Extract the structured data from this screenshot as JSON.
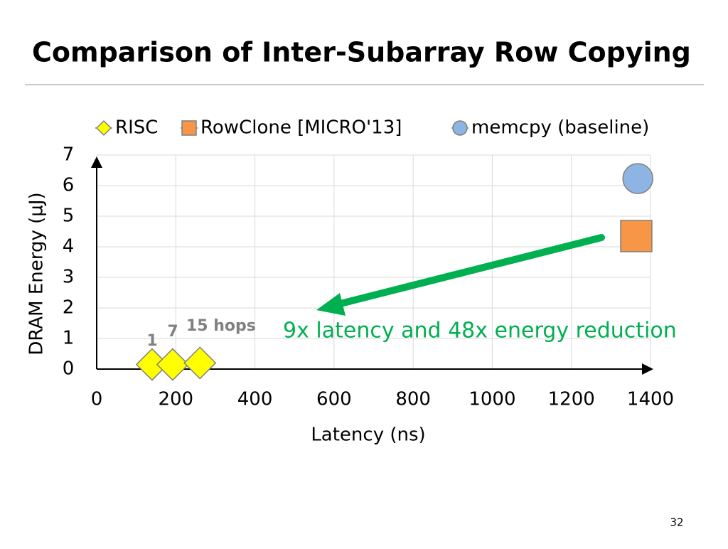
{
  "title": "Comparison of Inter-Subarray Row Copying",
  "page_number": "32",
  "chart_data": {
    "type": "scatter",
    "x_label": "Latency (ns)",
    "y_label": "DRAM Energy (µJ)",
    "xlim": [
      0,
      1400
    ],
    "xticks": [
      0,
      200,
      400,
      600,
      800,
      1000,
      1200,
      1400
    ],
    "ylim": [
      0,
      7
    ],
    "yticks": [
      0,
      1,
      2,
      3,
      4,
      5,
      6,
      7
    ],
    "grid": true,
    "legend": "top",
    "series": [
      {
        "name": "RISC",
        "color": "#ffff00",
        "marker": "diamond",
        "x": [
          140,
          192,
          261
        ],
        "values": [
          0.15,
          0.15,
          0.2
        ]
      },
      {
        "name": "RowClone [MICRO'13]",
        "color": "#f79646",
        "marker": "square",
        "x": [
          1364
        ],
        "values": [
          4.35
        ]
      },
      {
        "name": "memcpy (baseline)",
        "color": "#8eb4e3",
        "marker": "circle",
        "x": [
          1368
        ],
        "values": [
          6.23
        ]
      }
    ],
    "annotations": [
      "1",
      "7",
      "15 hops",
      "9x latency and 48x energy reduction"
    ]
  }
}
